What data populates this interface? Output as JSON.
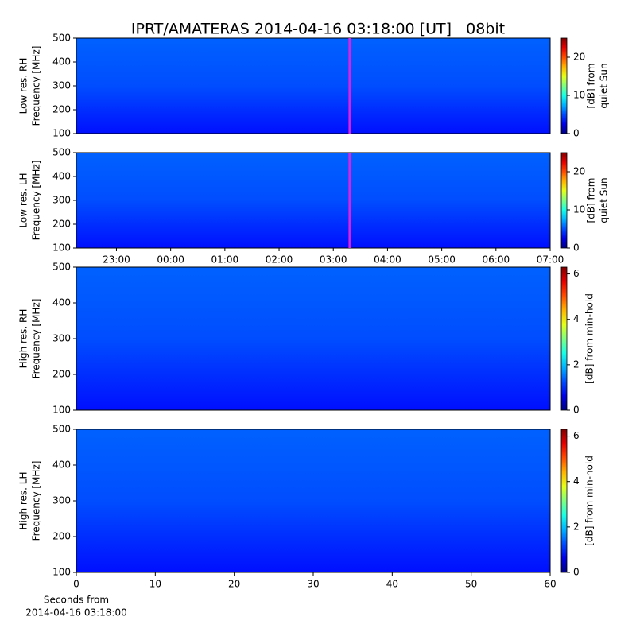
{
  "title": "IPRT/AMATERAS 2014-04-16 03:18:00 [UT]   08bit",
  "chart_data": [
    {
      "type": "heatmap",
      "colormap": "jet",
      "ylabel": [
        "Low res. RH",
        "Frequency [MHz]"
      ],
      "ylim": [
        100,
        500
      ],
      "yticks": [
        100,
        200,
        300,
        400,
        500
      ],
      "xlim": [
        22.26,
        31
      ],
      "marker": 27.3,
      "marker_color": "#e020e0",
      "colorbar": {
        "label": [
          "[dB] from",
          "quiet Sun"
        ],
        "lim": [
          0,
          25
        ],
        "ticks": [
          0,
          10,
          20
        ]
      }
    },
    {
      "type": "heatmap",
      "colormap": "jet",
      "ylabel": [
        "Low res. LH",
        "Frequency [MHz]"
      ],
      "ylim": [
        100,
        500
      ],
      "yticks": [
        100,
        200,
        300,
        400,
        500
      ],
      "xlim": [
        22.26,
        31
      ],
      "marker": 27.3,
      "marker_color": "#e020e0",
      "xticks": [
        {
          "value": 23,
          "label": "23:00"
        },
        {
          "value": 24,
          "label": "00:00"
        },
        {
          "value": 25,
          "label": "01:00"
        },
        {
          "value": 26,
          "label": "02:00"
        },
        {
          "value": 27,
          "label": "03:00"
        },
        {
          "value": 28,
          "label": "04:00"
        },
        {
          "value": 29,
          "label": "05:00"
        },
        {
          "value": 30,
          "label": "06:00"
        },
        {
          "value": 31,
          "label": "07:00"
        }
      ],
      "colorbar": {
        "label": [
          "[dB] from",
          "quiet Sun"
        ],
        "lim": [
          0,
          25
        ],
        "ticks": [
          0,
          10,
          20
        ]
      }
    },
    {
      "type": "heatmap",
      "colormap": "jet",
      "ylabel": [
        "High res. RH",
        "Frequency [MHz]"
      ],
      "ylim": [
        100,
        500
      ],
      "yticks": [
        100,
        200,
        300,
        400,
        500
      ],
      "colorbar": {
        "label": [
          "[dB] from min-hold"
        ],
        "lim": [
          0,
          6.3
        ],
        "ticks": [
          0,
          2,
          4,
          6
        ]
      }
    },
    {
      "type": "heatmap",
      "colormap": "jet",
      "ylabel": [
        "High res. LH",
        "Frequency [MHz]"
      ],
      "ylim": [
        100,
        500
      ],
      "yticks": [
        100,
        200,
        300,
        400,
        500
      ],
      "xlim": [
        0,
        60
      ],
      "xticks": [
        0,
        10,
        20,
        30,
        40,
        50,
        60
      ],
      "xlabel": [
        "Seconds from",
        "2014-04-16 03:18:00"
      ],
      "colorbar": {
        "label": [
          "[dB] from min-hold"
        ],
        "lim": [
          0,
          6.3
        ],
        "ticks": [
          0,
          2,
          4,
          6
        ]
      }
    }
  ]
}
